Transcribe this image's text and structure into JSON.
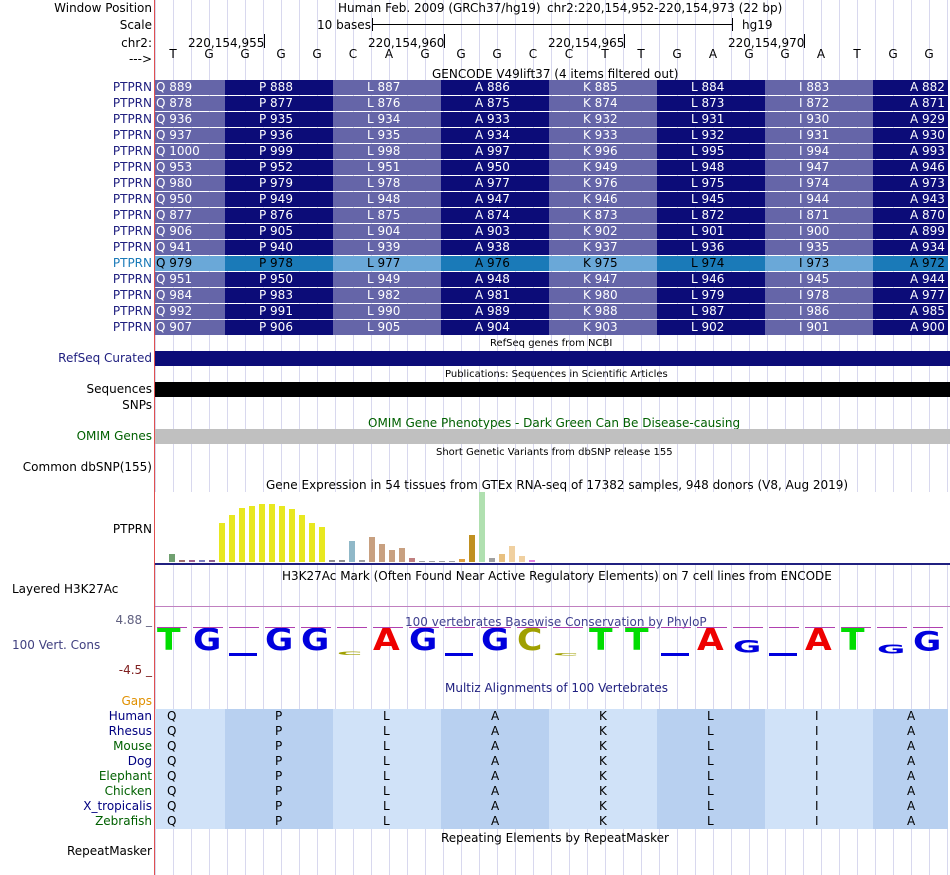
{
  "header": {
    "window_position_label": "Window Position",
    "assembly": "Human Feb. 2009 (GRCh37/hg19)",
    "region": "chr2:220,154,952-220,154,973 (22 bp)",
    "scale_label": "Scale",
    "scale_text": "10 bases",
    "scale_assembly": "hg19",
    "chrom_label": "chr2:",
    "strand_label": "--->",
    "positions": [
      "220,154,955",
      "220,154,960",
      "220,154,965",
      "220,154,970"
    ],
    "bases": [
      "T",
      "G",
      "G",
      "G",
      "G",
      "C",
      "A",
      "G",
      "G",
      "G",
      "C",
      "C",
      "T",
      "T",
      "G",
      "A",
      "G",
      "G",
      "A",
      "T",
      "G",
      "G"
    ]
  },
  "gencode": {
    "title": "GENCODE V49lift37 (4 items filtered out)",
    "gene_label": "PTPRN",
    "amino_acids": [
      "Q",
      "P",
      "L",
      "A",
      "K",
      "L",
      "I",
      "A"
    ],
    "rows": [
      {
        "label": "PTPRN",
        "start": 889,
        "end": 882
      },
      {
        "label": "PTPRN",
        "start": 878,
        "end": 871
      },
      {
        "label": "PTPRN",
        "start": 936,
        "end": 929
      },
      {
        "label": "PTPRN",
        "start": 937,
        "end": 930
      },
      {
        "label": "PTPRN",
        "start": 1000,
        "end": 993
      },
      {
        "label": "PTPRN",
        "start": 953,
        "end": 946
      },
      {
        "label": "PTPRN",
        "start": 980,
        "end": 973
      },
      {
        "label": "PTPRN",
        "start": 950,
        "end": 943
      },
      {
        "label": "PTPRN",
        "start": 877,
        "end": 870
      },
      {
        "label": "PTPRN",
        "start": 906,
        "end": 899
      },
      {
        "label": "PTPRN",
        "start": 941,
        "end": 934
      },
      {
        "label": "PTPRN",
        "start": 979,
        "end": 972,
        "highlight": true
      },
      {
        "label": "PTPRN",
        "start": 951,
        "end": 944
      },
      {
        "label": "PTPRN",
        "start": 984,
        "end": 977
      },
      {
        "label": "PTPRN",
        "start": 992,
        "end": 985
      },
      {
        "label": "PTPRN",
        "start": 907,
        "end": 900
      }
    ],
    "dark_color": "#0c0c78",
    "light_color": "#6565a8",
    "highlight_dark": "#1a7ab8",
    "highlight_light": "#6aa8d8"
  },
  "tracks": {
    "refseq_title": "RefSeq genes from NCBI",
    "refseq_label": "RefSeq Curated",
    "publications_title": "Publications: Sequences in Scientific Articles",
    "sequences_label": "Sequences",
    "snps_label": "SNPs",
    "omim_title": "OMIM Gene Phenotypes - Dark Green Can Be Disease-causing",
    "omim_label": "OMIM Genes",
    "dbsnp_title": "Short Genetic Variants from dbSNP release 155",
    "dbsnp_label": "Common dbSNP(155)",
    "gtex_title": "Gene Expression in 54 tissues from GTEx RNA-seq of 17382 samples, 948 donors (V8, Aug 2019)",
    "gtex_label": "PTPRN",
    "h3k27_title": "H3K27Ac Mark (Often Found Near Active Regulatory Elements) on 7 cell lines from ENCODE",
    "h3k27_label": "Layered H3K27Ac",
    "phylop_title": "100 vertebrates Basewise Conservation by PhyloP",
    "phylop_label": "100 Vert. Cons",
    "phylop_max": "4.88 _",
    "phylop_min": "-4.5 _",
    "multiz_title": "Multiz Alignments of 100 Vertebrates",
    "gaps_label": "Gaps",
    "repeat_title": "Repeating Elements by RepeatMasker",
    "repeat_label": "RepeatMasker"
  },
  "gtex_bars": [
    {
      "v": 8,
      "color": "#70a070"
    },
    {
      "v": 2,
      "color": "#a07070"
    },
    {
      "v": 2,
      "color": "#a06090"
    },
    {
      "v": 2,
      "color": "#8080c0"
    },
    {
      "v": 2,
      "color": "#906090"
    },
    {
      "v": 40,
      "color": "#e8e820"
    },
    {
      "v": 48,
      "color": "#e8e820"
    },
    {
      "v": 56,
      "color": "#e8e820"
    },
    {
      "v": 58,
      "color": "#e8e820"
    },
    {
      "v": 60,
      "color": "#e8e820"
    },
    {
      "v": 60,
      "color": "#e8e820"
    },
    {
      "v": 58,
      "color": "#e8e820"
    },
    {
      "v": 54,
      "color": "#e8e820"
    },
    {
      "v": 48,
      "color": "#e8e820"
    },
    {
      "v": 40,
      "color": "#e8e820"
    },
    {
      "v": 36,
      "color": "#e8e820"
    },
    {
      "v": 2,
      "color": "#909090"
    },
    {
      "v": 2,
      "color": "#909090"
    },
    {
      "v": 22,
      "color": "#90b8c8"
    },
    {
      "v": 2,
      "color": "#a0a0a0"
    },
    {
      "v": 26,
      "color": "#c8a080"
    },
    {
      "v": 18,
      "color": "#c8a080"
    },
    {
      "v": 12,
      "color": "#c8a080"
    },
    {
      "v": 14,
      "color": "#c8a080"
    },
    {
      "v": 4,
      "color": "#c08080"
    },
    {
      "v": 1,
      "color": "#a0a0a0"
    },
    {
      "v": 1,
      "color": "#a0a0a0"
    },
    {
      "v": 1,
      "color": "#a0a0a0"
    },
    {
      "v": 1,
      "color": "#a0a0a0"
    },
    {
      "v": 3,
      "color": "#e0a040"
    },
    {
      "v": 28,
      "color": "#c09020"
    },
    {
      "v": 72,
      "color": "#b0e0b0"
    },
    {
      "v": 4,
      "color": "#a0a0a0"
    },
    {
      "v": 8,
      "color": "#e8c080"
    },
    {
      "v": 16,
      "color": "#f0d0a0"
    },
    {
      "v": 6,
      "color": "#f0d0a0"
    },
    {
      "v": 2,
      "color": "#e080e0"
    }
  ],
  "phylop": [
    {
      "base": "T",
      "height": 1.0,
      "color": "#00dd00"
    },
    {
      "base": "G",
      "height": 1.0,
      "color": "#0000dd"
    },
    {
      "base": "G",
      "height": -0.05,
      "color": "#0000dd"
    },
    {
      "base": "G",
      "height": 1.0,
      "color": "#0000dd"
    },
    {
      "base": "G",
      "height": 1.0,
      "color": "#0000dd"
    },
    {
      "base": "C",
      "height": 0.15,
      "color": "#a0a000"
    },
    {
      "base": "A",
      "height": 1.0,
      "color": "#ee0000"
    },
    {
      "base": "G",
      "height": 1.0,
      "color": "#0000dd"
    },
    {
      "base": "G",
      "height": 0.0,
      "color": "#0000dd"
    },
    {
      "base": "G",
      "height": 1.0,
      "color": "#0000dd"
    },
    {
      "base": "C",
      "height": 1.0,
      "color": "#a0a000"
    },
    {
      "base": "C",
      "height": 0.12,
      "color": "#a0a000"
    },
    {
      "base": "T",
      "height": 1.0,
      "color": "#00dd00"
    },
    {
      "base": "T",
      "height": 1.0,
      "color": "#00dd00"
    },
    {
      "base": "G",
      "height": -0.1,
      "color": "#0000dd"
    },
    {
      "base": "A",
      "height": 1.0,
      "color": "#ee0000"
    },
    {
      "base": "G",
      "height": 0.55,
      "color": "#0000dd"
    },
    {
      "base": "G",
      "height": 0.1,
      "color": "#0000dd"
    },
    {
      "base": "A",
      "height": 1.0,
      "color": "#ee0000"
    },
    {
      "base": "T",
      "height": 1.0,
      "color": "#00dd00"
    },
    {
      "base": "G",
      "height": 0.4,
      "color": "#0000dd"
    },
    {
      "base": "G",
      "height": 0.9,
      "color": "#0000dd"
    }
  ],
  "multiz": {
    "species": [
      {
        "name": "Human",
        "color": "#000080"
      },
      {
        "name": "Rhesus",
        "color": "#000080"
      },
      {
        "name": "Mouse",
        "color": "#006000"
      },
      {
        "name": "Dog",
        "color": "#000080"
      },
      {
        "name": "Elephant",
        "color": "#006000"
      },
      {
        "name": "Chicken",
        "color": "#006000"
      },
      {
        "name": "X_tropicalis",
        "color": "#000080"
      },
      {
        "name": "Zebrafish",
        "color": "#006000"
      }
    ],
    "amino_acids": [
      "Q",
      "P",
      "L",
      "A",
      "K",
      "L",
      "I",
      "A"
    ],
    "dark_color": "#b8d0f0",
    "light_color": "#d0e2f8"
  }
}
